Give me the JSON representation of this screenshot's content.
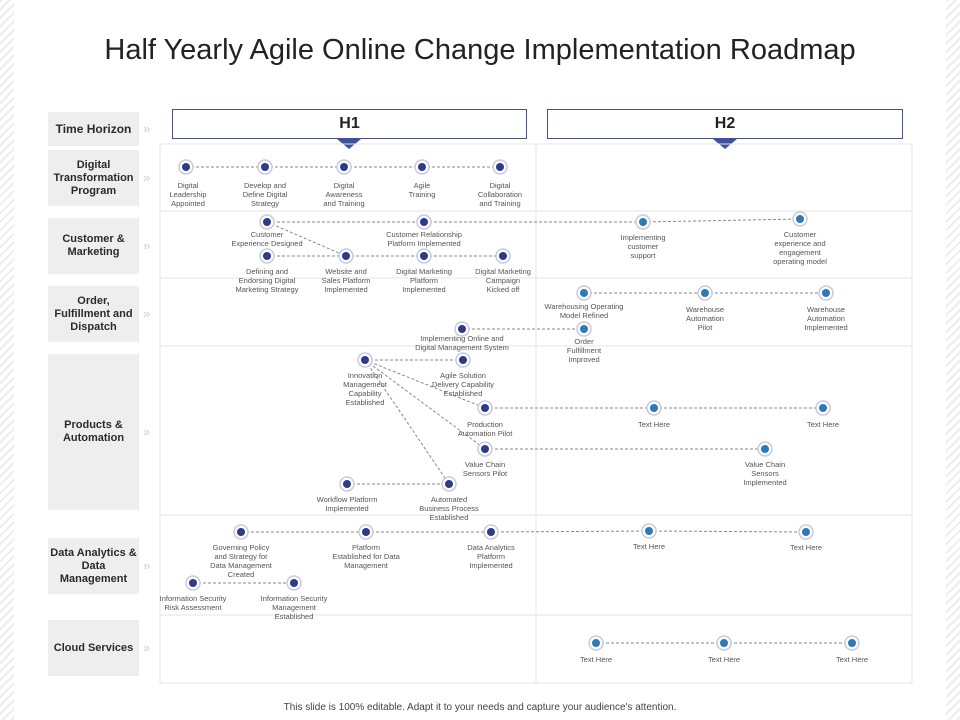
{
  "title": "Half Yearly Agile Online Change Implementation Roadmap",
  "time_horizon_label": "Time Horizon",
  "periods": [
    "H1",
    "H2"
  ],
  "rows": [
    "Digital Transformation Program",
    "Customer & Marketing",
    "Order, Fulfillment and Dispatch",
    "Products & Automation",
    "Data Analytics & Data Management",
    "Cloud Services"
  ],
  "milestones": [
    {
      "id": "m1",
      "label": "Digital Leadership Appointed",
      "color": "#2e3a8c"
    },
    {
      "id": "m2",
      "label": "Develop and Define Digital Strategy",
      "color": "#2e3a8c"
    },
    {
      "id": "m3",
      "label": "Digital Awareness and Training",
      "color": "#2e3a8c"
    },
    {
      "id": "m4",
      "label": "Agile Training",
      "color": "#2e3a8c"
    },
    {
      "id": "m5",
      "label": "Digital Collaboration and Training",
      "color": "#2e3a8c"
    },
    {
      "id": "c1",
      "label": "Customer Experience Designed",
      "color": "#2e3a8c"
    },
    {
      "id": "c2",
      "label": "Customer Relationship Platform Implemented",
      "color": "#2e3a8c"
    },
    {
      "id": "c3",
      "label": "Implementing customer support",
      "color": "#2d7ab8"
    },
    {
      "id": "c4",
      "label": "Customer experience and engagement operating model",
      "color": "#2d7ab8"
    },
    {
      "id": "c5",
      "label": "Defining and Endorsing Digital Marketing Strategy",
      "color": "#2e3a8c"
    },
    {
      "id": "c6",
      "label": "Website and Sales Platform Implemented",
      "color": "#2e3a8c"
    },
    {
      "id": "c7",
      "label": "Digital Marketing Platform Implemented",
      "color": "#2e3a8c"
    },
    {
      "id": "c8",
      "label": "Digital Marketing Campaign Kicked off",
      "color": "#2e3a8c"
    },
    {
      "id": "o1",
      "label": "Warehousing Operating Model Refined",
      "color": "#2d7ab8"
    },
    {
      "id": "o2",
      "label": "Warehouse Automation Pilot",
      "color": "#2d7ab8"
    },
    {
      "id": "o3",
      "label": "Warehouse Automation Implemented",
      "color": "#2d7ab8"
    },
    {
      "id": "o4",
      "label": "Implementing Online and Digital Management System",
      "color": "#2e3a8c"
    },
    {
      "id": "o5",
      "label": "Order Fulfillment Improved",
      "color": "#2d7ab8"
    },
    {
      "id": "p1",
      "label": "Innovation Management Capability Established",
      "color": "#2e3a8c"
    },
    {
      "id": "p2",
      "label": "Agile Solution Delivery Capability Established",
      "color": "#2e3a8c"
    },
    {
      "id": "p3",
      "label": "Production Automation Pilot",
      "color": "#2e3a8c"
    },
    {
      "id": "p4",
      "label": "Text Here",
      "color": "#2d7ab8"
    },
    {
      "id": "p5",
      "label": "Text Here",
      "color": "#2d7ab8"
    },
    {
      "id": "p6",
      "label": "Value Chain Sensors Pilot",
      "color": "#2e3a8c"
    },
    {
      "id": "p7",
      "label": "Value Chain Sensors Implemented",
      "color": "#2d7ab8"
    },
    {
      "id": "p8",
      "label": "Workflow Platform Implemented",
      "color": "#2e3a8c"
    },
    {
      "id": "p9",
      "label": "Automated Business Process Established",
      "color": "#2e3a8c"
    },
    {
      "id": "d1",
      "label": "Governing Policy and Strategy for Data Management Created",
      "color": "#2e3a8c"
    },
    {
      "id": "d2",
      "label": "Platform Established for Data Management",
      "color": "#2e3a8c"
    },
    {
      "id": "d3",
      "label": "Data Analytics Platform Implemented",
      "color": "#2e3a8c"
    },
    {
      "id": "d4",
      "label": "Text Here",
      "color": "#2d7ab8"
    },
    {
      "id": "d5",
      "label": "Text Here",
      "color": "#2d7ab8"
    },
    {
      "id": "d6",
      "label": "Information Security Risk Assessment",
      "color": "#2e3a8c"
    },
    {
      "id": "d7",
      "label": "Information Security Management Established",
      "color": "#2e3a8c"
    },
    {
      "id": "s1",
      "label": "Text Here",
      "color": "#2d7ab8"
    },
    {
      "id": "s2",
      "label": "Text Here",
      "color": "#2d7ab8"
    },
    {
      "id": "s3",
      "label": "Text Here",
      "color": "#2d7ab8"
    }
  ],
  "links": [
    [
      "m1",
      "m2"
    ],
    [
      "m2",
      "m3"
    ],
    [
      "m3",
      "m4"
    ],
    [
      "m4",
      "m5"
    ],
    [
      "c1",
      "c2"
    ],
    [
      "c2",
      "c3"
    ],
    [
      "c3",
      "c4"
    ],
    [
      "c1",
      "c6"
    ],
    [
      "c5",
      "c6"
    ],
    [
      "c6",
      "c7"
    ],
    [
      "c7",
      "c8"
    ],
    [
      "o1",
      "o2"
    ],
    [
      "o2",
      "o3"
    ],
    [
      "o4",
      "o5"
    ],
    [
      "p1",
      "p2"
    ],
    [
      "p1",
      "p3"
    ],
    [
      "p1",
      "p6"
    ],
    [
      "p1",
      "p9"
    ],
    [
      "p3",
      "p4"
    ],
    [
      "p4",
      "p5"
    ],
    [
      "p6",
      "p7"
    ],
    [
      "p8",
      "p9"
    ],
    [
      "d1",
      "d2"
    ],
    [
      "d2",
      "d3"
    ],
    [
      "d3",
      "d4"
    ],
    [
      "d4",
      "d5"
    ],
    [
      "d6",
      "d7"
    ],
    [
      "s1",
      "s2"
    ],
    [
      "s2",
      "s3"
    ]
  ],
  "footer": "This slide is 100% editable. Adapt it to your needs and capture your audience's attention."
}
